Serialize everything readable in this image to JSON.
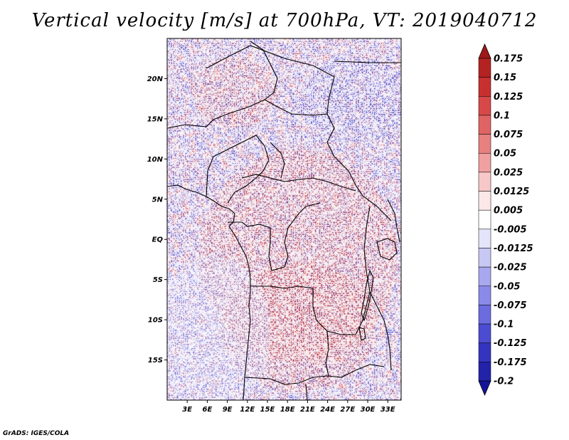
{
  "title": "Vertical velocity [m/s] at 700hPa, VT: 2019040712",
  "credit": "GrADS: IGES/COLA",
  "map": {
    "region": "Central Africa",
    "lon_range": [
      0,
      35
    ],
    "lat_range": [
      -20,
      25
    ],
    "lat_ticks": [
      {
        "value": 20,
        "label": "20N"
      },
      {
        "value": 15,
        "label": "15N"
      },
      {
        "value": 10,
        "label": "10N"
      },
      {
        "value": 5,
        "label": "5N"
      },
      {
        "value": 0,
        "label": "EQ"
      },
      {
        "value": -5,
        "label": "5S"
      },
      {
        "value": -10,
        "label": "10S"
      },
      {
        "value": -15,
        "label": "15S"
      }
    ],
    "lon_ticks": [
      {
        "value": 3,
        "label": "3E"
      },
      {
        "value": 6,
        "label": "6E"
      },
      {
        "value": 9,
        "label": "9E"
      },
      {
        "value": 12,
        "label": "12E"
      },
      {
        "value": 15,
        "label": "15E"
      },
      {
        "value": 18,
        "label": "18E"
      },
      {
        "value": 21,
        "label": "21E"
      },
      {
        "value": 24,
        "label": "24E"
      },
      {
        "value": 27,
        "label": "27E"
      },
      {
        "value": 30,
        "label": "30E"
      },
      {
        "value": 33,
        "label": "33E"
      }
    ]
  },
  "colorbar": {
    "levels": [
      "0.175",
      "0.15",
      "0.125",
      "0.1",
      "0.075",
      "0.05",
      "0.025",
      "0.0125",
      "0.005",
      "-0.005",
      "-0.0125",
      "-0.025",
      "-0.05",
      "-0.075",
      "-0.1",
      "-0.125",
      "-0.175",
      "-0.2"
    ],
    "colors": [
      "#a01818",
      "#b42222",
      "#c83030",
      "#d84848",
      "#e06464",
      "#e88080",
      "#f0a0a0",
      "#f8c8c8",
      "#fce8e8",
      "#ffffff",
      "#e4e4fa",
      "#c8c8f4",
      "#a8a8f0",
      "#8a8aea",
      "#6c6ce0",
      "#4c4cd2",
      "#3434c0",
      "#2222aa",
      "#14149a"
    ]
  }
}
